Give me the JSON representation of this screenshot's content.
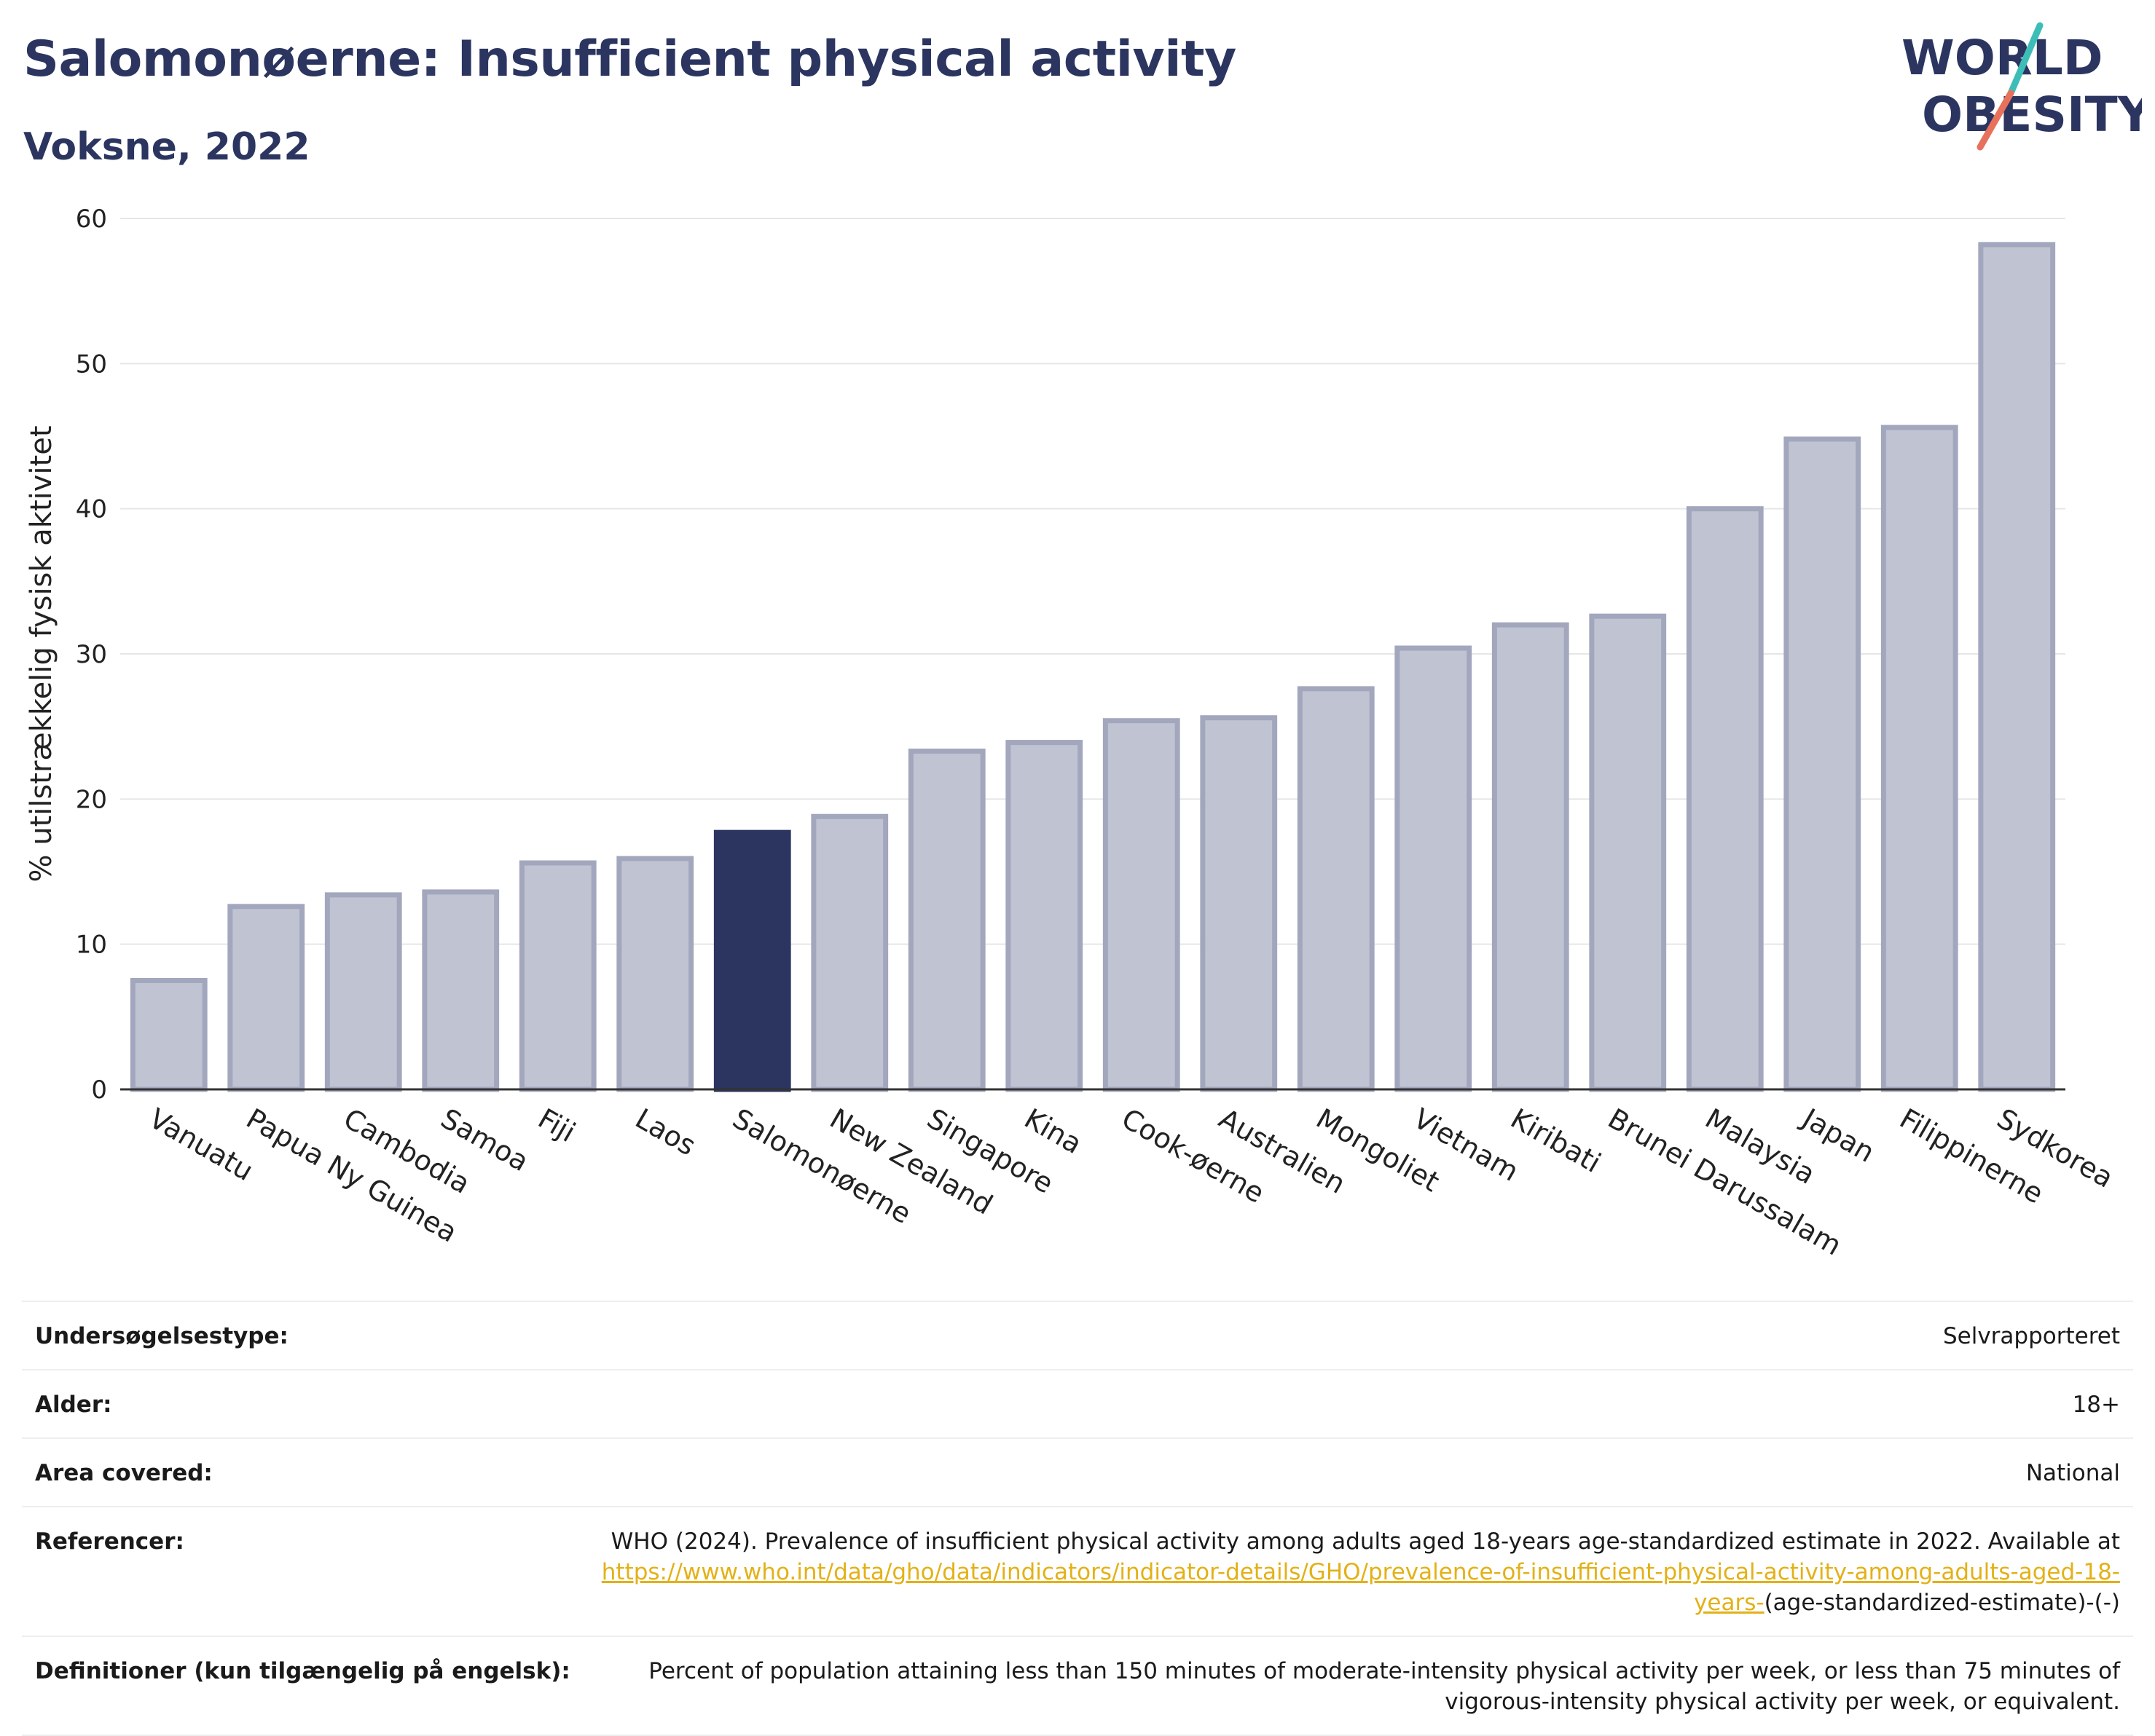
{
  "header": {
    "title": "Salomonøerne: Insufficient physical activity",
    "subtitle": "Voksne, 2022"
  },
  "logo": {
    "line1": "WORLD",
    "line2": "OBESITY",
    "icon": "world-obesity-logo",
    "colors": {
      "navy": "#2b3560",
      "teal": "#3dbdb7",
      "coral": "#e8715b"
    }
  },
  "chart_data": {
    "type": "bar",
    "ylabel": "% utilstrækkelig fysisk aktivitet",
    "ylim": [
      0,
      60
    ],
    "yticks": [
      0,
      10,
      20,
      30,
      40,
      50,
      60
    ],
    "grid": true,
    "highlight": "Salomonøerne",
    "colors": {
      "bar": "#c0c3d2",
      "bar_edge": "#a2a7bd",
      "highlight": "#2b3560"
    },
    "categories": [
      "Vanuatu",
      "Papua Ny Guinea",
      "Cambodia",
      "Samoa",
      "Fiji",
      "Laos",
      "Salomonøerne",
      "New Zealand",
      "Singapore",
      "Kina",
      "Cook-øerne",
      "Australien",
      "Mongoliet",
      "Vietnam",
      "Kiribati",
      "Brunei Darussalam",
      "Malaysia",
      "Japan",
      "Filippinerne",
      "Sydkorea"
    ],
    "values": [
      7.5,
      12.6,
      13.4,
      13.6,
      15.6,
      15.9,
      17.7,
      18.8,
      23.3,
      23.9,
      25.4,
      25.6,
      27.6,
      30.4,
      32.0,
      32.6,
      40.0,
      44.8,
      45.6,
      58.2
    ]
  },
  "info": {
    "rows": [
      {
        "key": "Undersøgelsestype:",
        "value": "Selvrapporteret"
      },
      {
        "key": "Alder:",
        "value": "18+"
      },
      {
        "key": "Area covered:",
        "value": "National"
      }
    ],
    "references": {
      "key": "Referencer:",
      "text": "WHO (2024). Prevalence of insufficient physical activity among adults aged 18-years age-standardized estimate in 2022. Available at",
      "link": "https://www.who.int/data/gho/data/indicators/indicator-details/GHO/prevalence-of-insufficient-physical-activity-among-adults-aged-18-years-",
      "suffix": "(age-standardized-estimate)-(-)"
    },
    "definition": {
      "key": "Definitioner (kun tilgængelig på engelsk):",
      "value": "Percent of population attaining less than 150 minutes of moderate-intensity physical activity per week, or less than 75 minutes of vigorous-intensity physical activity per week, or equivalent."
    }
  }
}
